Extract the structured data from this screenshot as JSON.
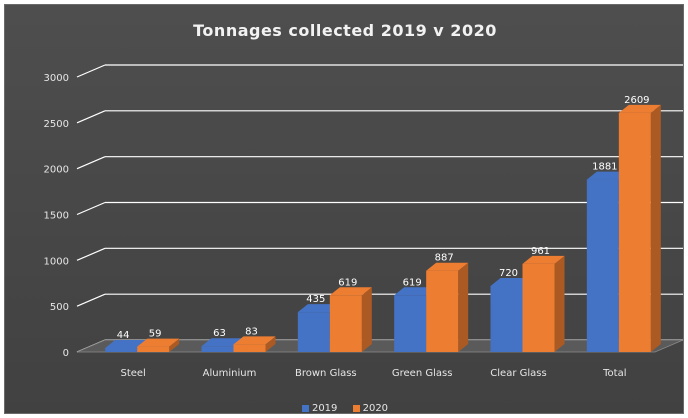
{
  "chart_data": {
    "type": "bar",
    "title": "Tonnages collected 2019 v 2020",
    "categories": [
      "Steel",
      "Aluminium",
      "Brown Glass",
      "Green Glass",
      "Clear Glass",
      "Total"
    ],
    "series": [
      {
        "name": "2019",
        "values": [
          44,
          63,
          435,
          619,
          720,
          1881
        ],
        "color": "#4472c4"
      },
      {
        "name": "2020",
        "values": [
          59,
          83,
          619,
          887,
          961,
          2609
        ],
        "color": "#ed7d31"
      }
    ],
    "yticks": [
      "0",
      "500",
      "1000",
      "1500",
      "2000",
      "2500",
      "3000"
    ],
    "ylim": [
      0,
      3000
    ],
    "grid": true,
    "legend_position": "bottom",
    "background": "#454545",
    "style": "3d-clustered-column"
  }
}
